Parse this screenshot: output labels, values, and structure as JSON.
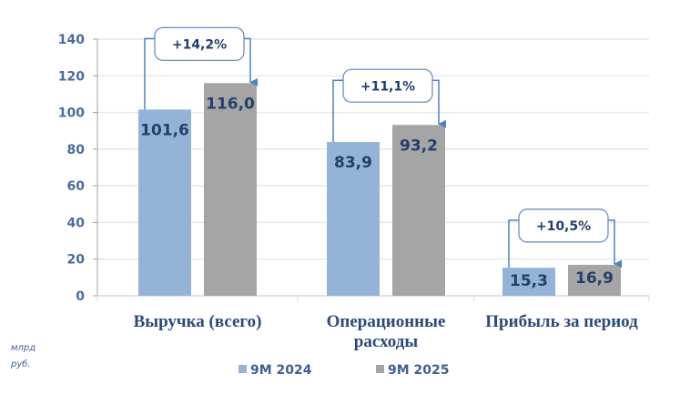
{
  "chart_data": {
    "type": "bar",
    "title": "",
    "xlabel": "",
    "ylabel": "млрд руб.",
    "unit_label": [
      "млрд",
      "руб."
    ],
    "ylim": [
      0,
      140
    ],
    "yticks": [
      0,
      20,
      40,
      60,
      80,
      100,
      120,
      140
    ],
    "grid": true,
    "legend_position": "bottom",
    "categories": [
      "Выручка (всего)",
      "Операционные расходы",
      "Прибыль за период"
    ],
    "category_lines": [
      [
        "Выручка (всего)"
      ],
      [
        "Операционные",
        "расходы"
      ],
      [
        "Прибыль за период"
      ]
    ],
    "series": [
      {
        "name": "9M 2024",
        "color": "#95b3d7",
        "values": [
          101.6,
          83.9,
          15.3
        ],
        "labels": [
          "101,6",
          "83,9",
          "15,3"
        ]
      },
      {
        "name": "9M 2025",
        "color": "#a5a5a5",
        "values": [
          116.0,
          93.2,
          16.9
        ],
        "labels": [
          "116,0",
          "93,2",
          "16,9"
        ]
      }
    ],
    "annotations": [
      {
        "category": "Выручка (всего)",
        "text": "+14,2%"
      },
      {
        "category": "Операционные расходы",
        "text": "+11,1%"
      },
      {
        "category": "Прибыль за период",
        "text": "+10,5%"
      }
    ]
  },
  "colors": {
    "axis_text": "#4a6a9a",
    "value_text": "#233f6b",
    "arrow": "#4f81bd",
    "gridline": "#e4e8f0"
  }
}
